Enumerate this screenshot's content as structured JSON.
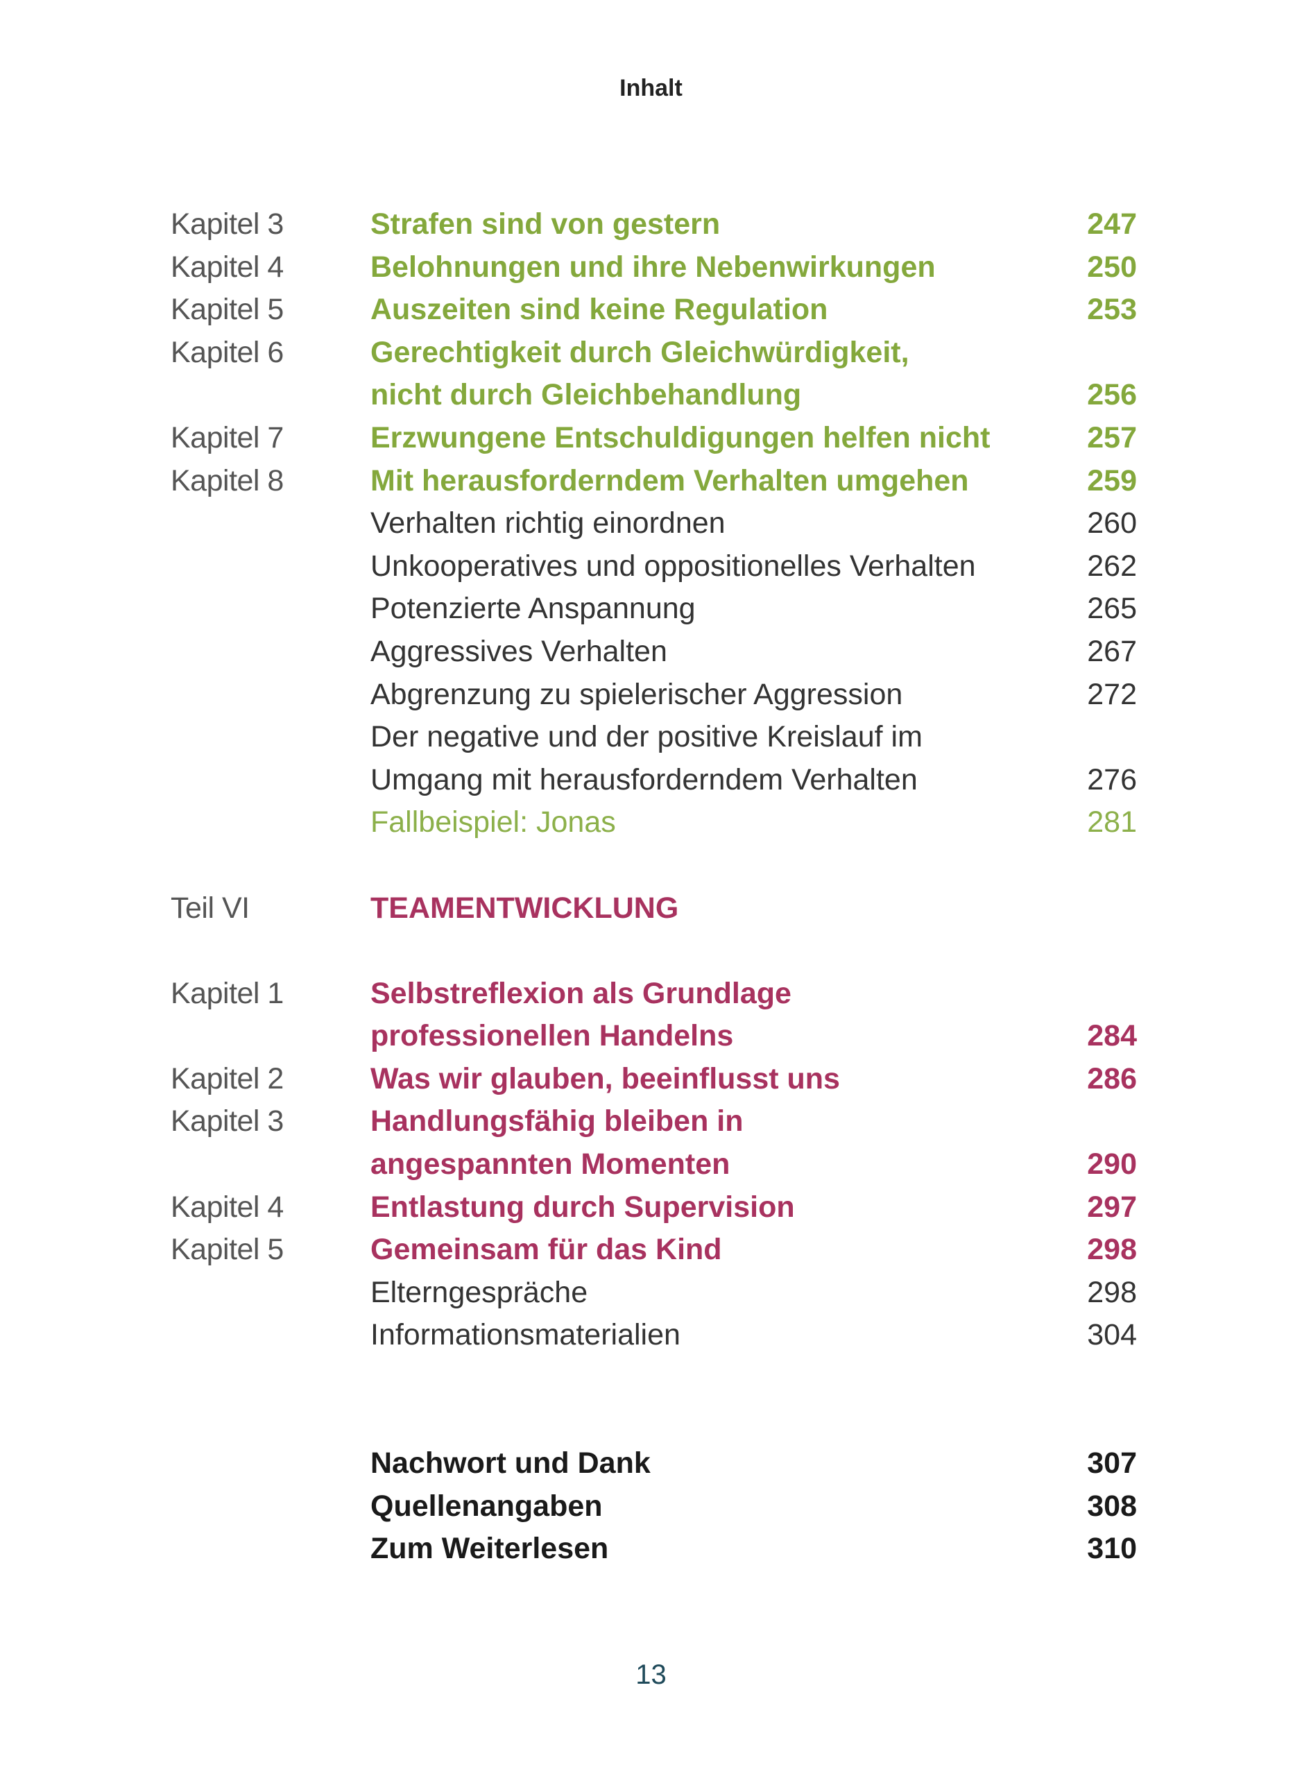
{
  "header": {
    "title": "Inhalt"
  },
  "colors": {
    "green": "#84a83c",
    "magenta": "#a8325f",
    "label_gray": "#555555",
    "page_number": "#1f4a5a"
  },
  "toc": [
    {
      "label": "Kapitel 3",
      "title": "Strafen sind von gestern",
      "page": "247",
      "style": "green-bold"
    },
    {
      "label": "Kapitel 4",
      "title": "Belohnungen und ihre Nebenwirkungen",
      "page": "250",
      "style": "green-bold"
    },
    {
      "label": "Kapitel 5",
      "title": "Auszeiten sind keine Regulation",
      "page": "253",
      "style": "green-bold"
    },
    {
      "label": "Kapitel 6",
      "title": "Gerechtigkeit durch Gleichwürdigkeit,",
      "page": "",
      "style": "green-bold"
    },
    {
      "label": "",
      "title": "nicht durch Gleichbehandlung",
      "page": "256",
      "style": "green-bold"
    },
    {
      "label": "Kapitel 7",
      "title": "Erzwungene Entschuldigungen helfen nicht",
      "page": "257",
      "style": "green-bold"
    },
    {
      "label": "Kapitel 8",
      "title": "Mit herausforderndem Verhalten umgehen",
      "page": "259",
      "style": "green-bold"
    },
    {
      "label": "",
      "title": "Verhalten richtig einordnen",
      "page": "260",
      "style": "plain"
    },
    {
      "label": "",
      "title": "Unkooperatives und oppositionelles Verhalten",
      "page": "262",
      "style": "plain"
    },
    {
      "label": "",
      "title": "Potenzierte Anspannung",
      "page": "265",
      "style": "plain"
    },
    {
      "label": "",
      "title": "Aggressives Verhalten",
      "page": "267",
      "style": "plain"
    },
    {
      "label": "",
      "title": "Abgrenzung zu spielerischer Aggression",
      "page": "272",
      "style": "plain"
    },
    {
      "label": "",
      "title": "Der negative und der positive Kreislauf im",
      "page": "",
      "style": "plain"
    },
    {
      "label": "",
      "title": "Umgang mit herausforderndem Verhalten",
      "page": "276",
      "style": "plain"
    },
    {
      "label": "",
      "title": "Fallbeispiel: Jonas",
      "page": "281",
      "style": "green-light"
    },
    {
      "gap": 1
    },
    {
      "label": "Teil VI",
      "title": "TEAMENTWICKLUNG",
      "page": "",
      "style": "magenta-bold"
    },
    {
      "gap": 1
    },
    {
      "label": "Kapitel 1",
      "title": "Selbstreflexion als Grundlage",
      "page": "",
      "style": "magenta-bold"
    },
    {
      "label": "",
      "title": "professionellen Handelns",
      "page": "284",
      "style": "magenta-bold"
    },
    {
      "label": "Kapitel 2",
      "title": "Was wir glauben, beeinflusst uns",
      "page": "286",
      "style": "magenta-bold"
    },
    {
      "label": "Kapitel 3",
      "title": "Handlungsfähig bleiben in",
      "page": "",
      "style": "magenta-bold"
    },
    {
      "label": "",
      "title": "angespannten Momenten",
      "page": "290",
      "style": "magenta-bold"
    },
    {
      "label": "Kapitel 4",
      "title": "Entlastung durch Supervision",
      "page": "297",
      "style": "magenta-bold"
    },
    {
      "label": "Kapitel 5",
      "title": "Gemeinsam für das Kind",
      "page": "298",
      "style": "magenta-bold"
    },
    {
      "label": "",
      "title": "Elterngespräche",
      "page": "298",
      "style": "plain"
    },
    {
      "label": "",
      "title": "Informationsmaterialien",
      "page": "304",
      "style": "plain"
    },
    {
      "gap": 2
    },
    {
      "label": "",
      "title": "Nachwort und Dank",
      "page": "307",
      "style": "black-bold"
    },
    {
      "label": "",
      "title": "Quellenangaben",
      "page": "308",
      "style": "black-bold"
    },
    {
      "label": "",
      "title": "Zum Weiterlesen",
      "page": "310",
      "style": "black-bold"
    }
  ],
  "footer": {
    "page_number": "13"
  }
}
